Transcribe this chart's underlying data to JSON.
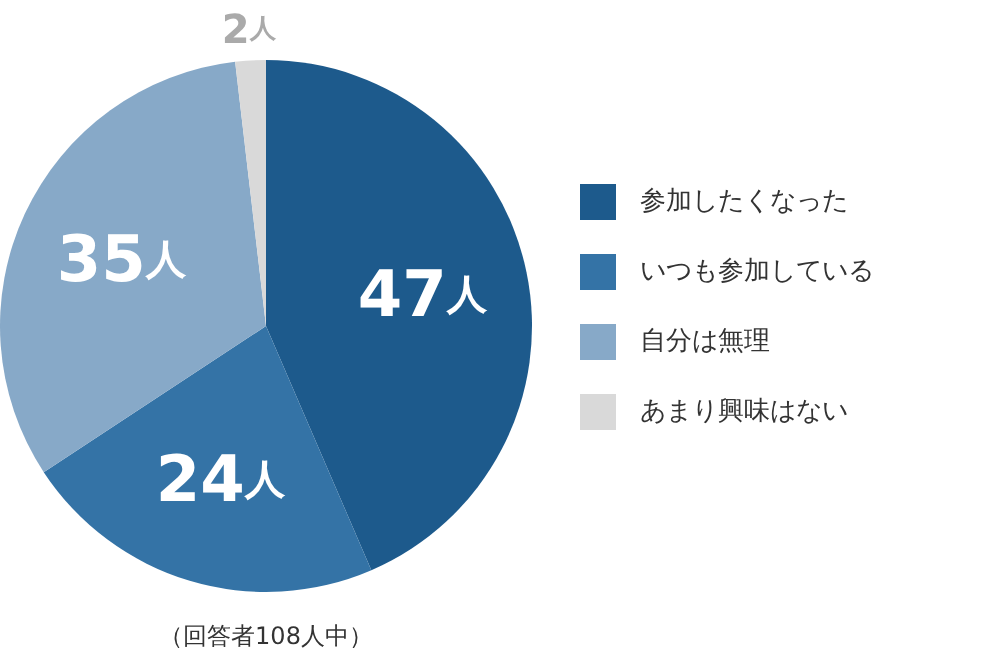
{
  "chart_data": {
    "type": "pie",
    "categories": [
      "参加したくなった",
      "いつも参加している",
      "自分は無理",
      "あまり興味はない"
    ],
    "values": [
      47,
      24,
      35,
      2
    ],
    "colors": [
      "#1d5a8c",
      "#3473a6",
      "#87a9c8",
      "#d9d9d9"
    ],
    "value_labels": [
      "47人",
      "24人",
      "35人",
      "2人"
    ],
    "legend": "right",
    "annotations": [
      "（回答者108人中）"
    ]
  }
}
